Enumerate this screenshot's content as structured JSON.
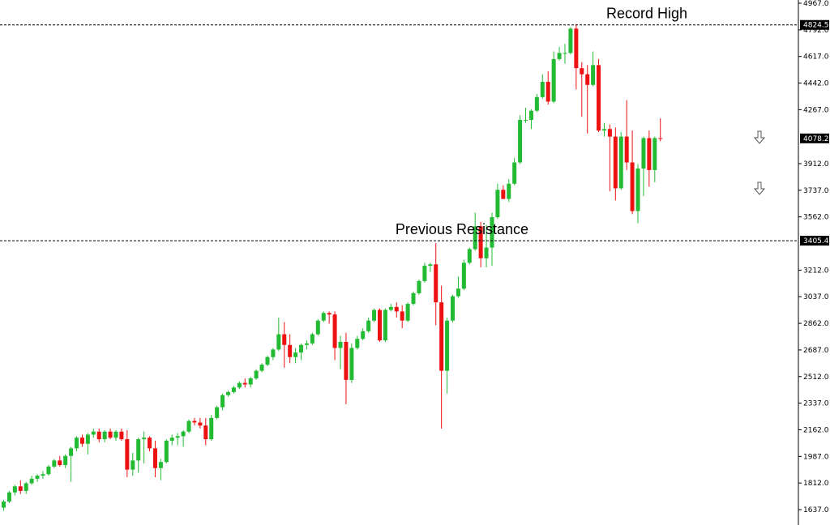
{
  "chart_data": {
    "type": "candlestick",
    "title": "",
    "xlabel": "",
    "ylabel": "",
    "ylim": [
      1637.0,
      4967.0
    ],
    "grid": false,
    "y_ticks": [
      "4967.0",
      "4792.0",
      "4617.0",
      "4442.0",
      "4267.0",
      "3912.0",
      "3737.0",
      "3562.0",
      "3212.0",
      "3037.0",
      "2862.0",
      "2687.0",
      "2512.0",
      "2337.0",
      "2162.0",
      "1987.0",
      "1812.0",
      "1637.0"
    ],
    "horizontal_lines": [
      {
        "value": 4824.5,
        "label": "4824.5",
        "annotation": "Record High"
      },
      {
        "value": 3405.4,
        "label": "3405.4",
        "annotation": "Previous Resistance"
      }
    ],
    "current_price": {
      "value": 4078.2,
      "label": "4078.2"
    },
    "colors": {
      "up": "#22bb33",
      "down": "#ee1111",
      "line": "#000000",
      "price_box": "#000000"
    },
    "icons": [
      "down-arrow-icon",
      "down-arrow-icon"
    ],
    "candles": [
      {
        "o": 1650,
        "h": 1700,
        "l": 1630,
        "c": 1690
      },
      {
        "o": 1690,
        "h": 1760,
        "l": 1680,
        "c": 1750
      },
      {
        "o": 1750,
        "h": 1800,
        "l": 1730,
        "c": 1790
      },
      {
        "o": 1790,
        "h": 1830,
        "l": 1740,
        "c": 1760
      },
      {
        "o": 1760,
        "h": 1820,
        "l": 1740,
        "c": 1810
      },
      {
        "o": 1810,
        "h": 1860,
        "l": 1800,
        "c": 1840
      },
      {
        "o": 1840,
        "h": 1870,
        "l": 1820,
        "c": 1860
      },
      {
        "o": 1860,
        "h": 1890,
        "l": 1840,
        "c": 1870
      },
      {
        "o": 1870,
        "h": 1930,
        "l": 1860,
        "c": 1920
      },
      {
        "o": 1920,
        "h": 1970,
        "l": 1910,
        "c": 1960
      },
      {
        "o": 1960,
        "h": 1990,
        "l": 1920,
        "c": 1930
      },
      {
        "o": 1930,
        "h": 2000,
        "l": 1910,
        "c": 1990
      },
      {
        "o": 1990,
        "h": 2050,
        "l": 1820,
        "c": 2040
      },
      {
        "o": 2040,
        "h": 2120,
        "l": 2020,
        "c": 2110
      },
      {
        "o": 2110,
        "h": 2130,
        "l": 2050,
        "c": 2070
      },
      {
        "o": 2070,
        "h": 2140,
        "l": 2000,
        "c": 2130
      },
      {
        "o": 2130,
        "h": 2170,
        "l": 2110,
        "c": 2150
      },
      {
        "o": 2150,
        "h": 2170,
        "l": 2080,
        "c": 2100
      },
      {
        "o": 2100,
        "h": 2160,
        "l": 2080,
        "c": 2150
      },
      {
        "o": 2150,
        "h": 2170,
        "l": 2100,
        "c": 2110
      },
      {
        "o": 2110,
        "h": 2160,
        "l": 2090,
        "c": 2150
      },
      {
        "o": 2150,
        "h": 2170,
        "l": 2090,
        "c": 2100
      },
      {
        "o": 2100,
        "h": 2160,
        "l": 1850,
        "c": 1900
      },
      {
        "o": 1900,
        "h": 2010,
        "l": 1860,
        "c": 1960
      },
      {
        "o": 1960,
        "h": 2110,
        "l": 1880,
        "c": 2100
      },
      {
        "o": 2100,
        "h": 2150,
        "l": 1940,
        "c": 2110
      },
      {
        "o": 2110,
        "h": 2120,
        "l": 2020,
        "c": 2040
      },
      {
        "o": 2040,
        "h": 2090,
        "l": 1850,
        "c": 1910
      },
      {
        "o": 1910,
        "h": 1970,
        "l": 1830,
        "c": 1950
      },
      {
        "o": 1950,
        "h": 2100,
        "l": 1940,
        "c": 2090
      },
      {
        "o": 2090,
        "h": 2130,
        "l": 2060,
        "c": 2110
      },
      {
        "o": 2110,
        "h": 2140,
        "l": 2060,
        "c": 2120
      },
      {
        "o": 2120,
        "h": 2160,
        "l": 2050,
        "c": 2150
      },
      {
        "o": 2150,
        "h": 2230,
        "l": 2140,
        "c": 2220
      },
      {
        "o": 2220,
        "h": 2240,
        "l": 2190,
        "c": 2210
      },
      {
        "o": 2210,
        "h": 2240,
        "l": 2170,
        "c": 2190
      },
      {
        "o": 2190,
        "h": 2240,
        "l": 2060,
        "c": 2100
      },
      {
        "o": 2100,
        "h": 2260,
        "l": 2090,
        "c": 2240
      },
      {
        "o": 2240,
        "h": 2320,
        "l": 2230,
        "c": 2310
      },
      {
        "o": 2310,
        "h": 2400,
        "l": 2290,
        "c": 2390
      },
      {
        "o": 2390,
        "h": 2420,
        "l": 2380,
        "c": 2410
      },
      {
        "o": 2410,
        "h": 2450,
        "l": 2400,
        "c": 2440
      },
      {
        "o": 2440,
        "h": 2480,
        "l": 2430,
        "c": 2470
      },
      {
        "o": 2470,
        "h": 2500,
        "l": 2440,
        "c": 2460
      },
      {
        "o": 2460,
        "h": 2510,
        "l": 2440,
        "c": 2500
      },
      {
        "o": 2500,
        "h": 2560,
        "l": 2490,
        "c": 2550
      },
      {
        "o": 2550,
        "h": 2600,
        "l": 2540,
        "c": 2590
      },
      {
        "o": 2590,
        "h": 2650,
        "l": 2580,
        "c": 2640
      },
      {
        "o": 2640,
        "h": 2700,
        "l": 2620,
        "c": 2690
      },
      {
        "o": 2690,
        "h": 2900,
        "l": 2680,
        "c": 2790
      },
      {
        "o": 2790,
        "h": 2870,
        "l": 2570,
        "c": 2720
      },
      {
        "o": 2720,
        "h": 2790,
        "l": 2600,
        "c": 2640
      },
      {
        "o": 2640,
        "h": 2700,
        "l": 2600,
        "c": 2670
      },
      {
        "o": 2670,
        "h": 2730,
        "l": 2620,
        "c": 2720
      },
      {
        "o": 2720,
        "h": 2750,
        "l": 2690,
        "c": 2730
      },
      {
        "o": 2730,
        "h": 2800,
        "l": 2720,
        "c": 2790
      },
      {
        "o": 2790,
        "h": 2890,
        "l": 2780,
        "c": 2880
      },
      {
        "o": 2880,
        "h": 2940,
        "l": 2870,
        "c": 2930
      },
      {
        "o": 2930,
        "h": 2940,
        "l": 2860,
        "c": 2920
      },
      {
        "o": 2920,
        "h": 2940,
        "l": 2620,
        "c": 2700
      },
      {
        "o": 2700,
        "h": 2780,
        "l": 2560,
        "c": 2740
      },
      {
        "o": 2740,
        "h": 2800,
        "l": 2330,
        "c": 2490
      },
      {
        "o": 2490,
        "h": 2730,
        "l": 2470,
        "c": 2700
      },
      {
        "o": 2700,
        "h": 2780,
        "l": 2690,
        "c": 2760
      },
      {
        "o": 2760,
        "h": 2830,
        "l": 2750,
        "c": 2810
      },
      {
        "o": 2810,
        "h": 2900,
        "l": 2800,
        "c": 2880
      },
      {
        "o": 2880,
        "h": 2960,
        "l": 2870,
        "c": 2950
      },
      {
        "o": 2950,
        "h": 2960,
        "l": 2740,
        "c": 2750
      },
      {
        "o": 2750,
        "h": 2960,
        "l": 2740,
        "c": 2950
      },
      {
        "o": 2950,
        "h": 2990,
        "l": 2940,
        "c": 2970
      },
      {
        "o": 2970,
        "h": 3000,
        "l": 2900,
        "c": 2940
      },
      {
        "o": 2940,
        "h": 2980,
        "l": 2830,
        "c": 2880
      },
      {
        "o": 2880,
        "h": 3000,
        "l": 2870,
        "c": 2990
      },
      {
        "o": 2990,
        "h": 3070,
        "l": 2980,
        "c": 3060
      },
      {
        "o": 3060,
        "h": 3150,
        "l": 3050,
        "c": 3140
      },
      {
        "o": 3140,
        "h": 3260,
        "l": 3130,
        "c": 3240
      },
      {
        "o": 3240,
        "h": 3260,
        "l": 3200,
        "c": 3250
      },
      {
        "o": 3250,
        "h": 3390,
        "l": 2850,
        "c": 3000
      },
      {
        "o": 3000,
        "h": 3110,
        "l": 2170,
        "c": 2550
      },
      {
        "o": 2550,
        "h": 2900,
        "l": 2400,
        "c": 2880
      },
      {
        "o": 2880,
        "h": 3050,
        "l": 2870,
        "c": 3040
      },
      {
        "o": 3040,
        "h": 3170,
        "l": 3030,
        "c": 3090
      },
      {
        "o": 3090,
        "h": 3280,
        "l": 3080,
        "c": 3260
      },
      {
        "o": 3260,
        "h": 3360,
        "l": 3250,
        "c": 3350
      },
      {
        "o": 3350,
        "h": 3590,
        "l": 3340,
        "c": 3500
      },
      {
        "o": 3500,
        "h": 3530,
        "l": 3230,
        "c": 3290
      },
      {
        "o": 3290,
        "h": 3510,
        "l": 3230,
        "c": 3360
      },
      {
        "o": 3360,
        "h": 3590,
        "l": 3240,
        "c": 3560
      },
      {
        "o": 3560,
        "h": 3780,
        "l": 3550,
        "c": 3740
      },
      {
        "o": 3740,
        "h": 3770,
        "l": 3680,
        "c": 3680
      },
      {
        "o": 3680,
        "h": 3810,
        "l": 3660,
        "c": 3780
      },
      {
        "o": 3780,
        "h": 3950,
        "l": 3770,
        "c": 3920
      },
      {
        "o": 3920,
        "h": 4230,
        "l": 3910,
        "c": 4200
      },
      {
        "o": 4200,
        "h": 4280,
        "l": 4180,
        "c": 4200
      },
      {
        "o": 4200,
        "h": 4270,
        "l": 4140,
        "c": 4260
      },
      {
        "o": 4260,
        "h": 4370,
        "l": 4250,
        "c": 4350
      },
      {
        "o": 4350,
        "h": 4500,
        "l": 4340,
        "c": 4450
      },
      {
        "o": 4450,
        "h": 4520,
        "l": 4300,
        "c": 4320
      },
      {
        "o": 4320,
        "h": 4650,
        "l": 4310,
        "c": 4600
      },
      {
        "o": 4600,
        "h": 4680,
        "l": 4590,
        "c": 4640
      },
      {
        "o": 4640,
        "h": 4700,
        "l": 4570,
        "c": 4640
      },
      {
        "o": 4640,
        "h": 4810,
        "l": 4630,
        "c": 4800
      },
      {
        "o": 4800,
        "h": 4830,
        "l": 4400,
        "c": 4540
      },
      {
        "o": 4540,
        "h": 4580,
        "l": 4220,
        "c": 4500
      },
      {
        "o": 4500,
        "h": 4560,
        "l": 4110,
        "c": 4430
      },
      {
        "o": 4430,
        "h": 4650,
        "l": 4420,
        "c": 4560
      },
      {
        "o": 4560,
        "h": 4600,
        "l": 4120,
        "c": 4130
      },
      {
        "o": 4130,
        "h": 4180,
        "l": 4090,
        "c": 4140
      },
      {
        "o": 4140,
        "h": 4170,
        "l": 3730,
        "c": 4090
      },
      {
        "o": 4090,
        "h": 4150,
        "l": 3670,
        "c": 3750
      },
      {
        "o": 3750,
        "h": 4120,
        "l": 3740,
        "c": 4090
      },
      {
        "o": 4090,
        "h": 4330,
        "l": 3870,
        "c": 3920
      },
      {
        "o": 3920,
        "h": 4130,
        "l": 3580,
        "c": 3600
      },
      {
        "o": 3600,
        "h": 3910,
        "l": 3520,
        "c": 3880
      },
      {
        "o": 3880,
        "h": 4090,
        "l": 3700,
        "c": 4080
      },
      {
        "o": 4080,
        "h": 4130,
        "l": 3760,
        "c": 3870
      },
      {
        "o": 3870,
        "h": 4090,
        "l": 3790,
        "c": 4080
      },
      {
        "o": 4080,
        "h": 4210,
        "l": 4060,
        "c": 4078
      }
    ]
  }
}
